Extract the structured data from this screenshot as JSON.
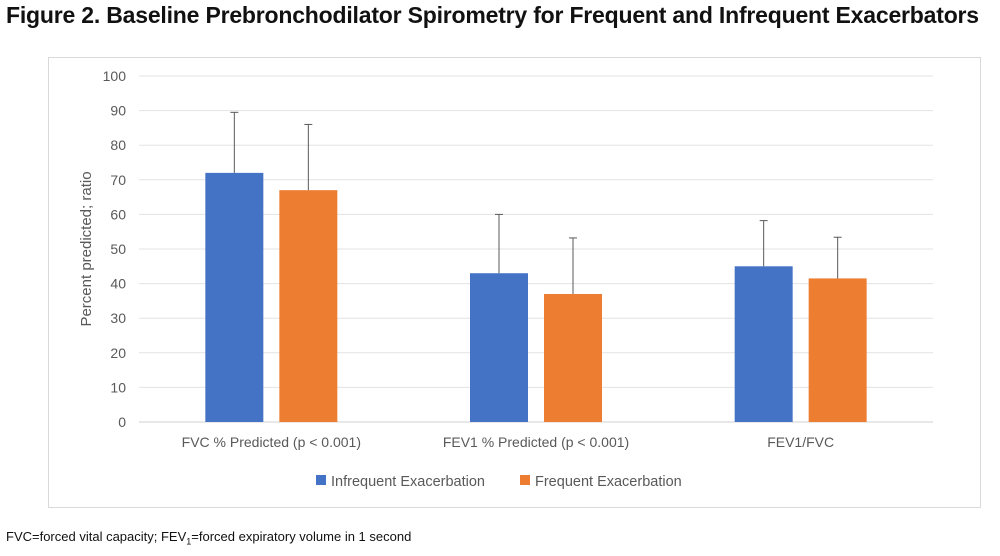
{
  "title": "Figure 2. Baseline Prebronchodilator Spirometry for Frequent and Infrequent Exacerbators",
  "footnote": {
    "part1": "FVC=forced vital capacity; FEV",
    "sub": "1",
    "part2": "=forced expiratory volume in 1 second"
  },
  "chart_data": {
    "type": "bar",
    "categories": [
      "FVC % Predicted (p < 0.001)",
      "FEV1 % Predicted (p < 0.001)",
      "FEV1/FVC"
    ],
    "series": [
      {
        "name": "Infrequent Exacerbation",
        "color": "#4472c4",
        "values": [
          72,
          43,
          45
        ],
        "error_upper": [
          89.5,
          60,
          58.2
        ]
      },
      {
        "name": "Frequent Exacerbation",
        "color": "#ed7d31",
        "values": [
          67,
          37,
          41.5
        ],
        "error_upper": [
          86,
          53.2,
          53.4
        ]
      }
    ],
    "ylabel": "Percent predicted; ratio",
    "xlabel": "",
    "ylim": [
      0,
      100
    ],
    "yticks": [
      0,
      10,
      20,
      30,
      40,
      50,
      60,
      70,
      80,
      90,
      100
    ],
    "grid": true,
    "legend_position": "bottom"
  }
}
